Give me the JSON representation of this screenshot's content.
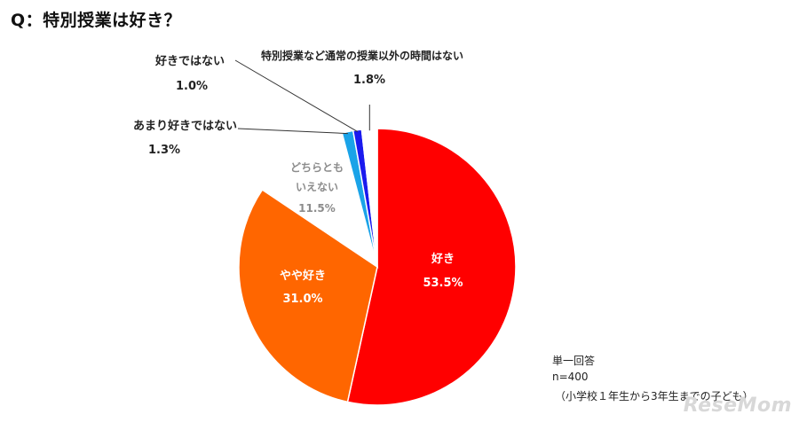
{
  "title": "Q：特別授業は好き？",
  "chart_data": {
    "type": "pie",
    "title": "Q：特別授業は好き？",
    "start": "12 o'clock, clockwise",
    "slices": [
      {
        "label": "好き",
        "value": 53.5,
        "value_label": "53.5%",
        "color": "#ff0000",
        "label_color": "#ffffff"
      },
      {
        "label": "やや好き",
        "value": 31.0,
        "value_label": "31.0%",
        "color": "#ff6600",
        "label_color": "#ffffff"
      },
      {
        "label_lines": [
          "どちらとも",
          "いえない"
        ],
        "value": 11.5,
        "value_label": "11.5%",
        "color": "#ffffff",
        "label_color": "#8c8c8c"
      },
      {
        "label": "あまり好きではない",
        "value": 1.3,
        "value_label": "1.3%",
        "color": "#1aa3e8",
        "label_color": "#222222"
      },
      {
        "label": "好きではない",
        "value": 1.0,
        "value_label": "1.0%",
        "color": "#1a1aee",
        "label_color": "#222222"
      },
      {
        "label": "特別授業など通常の授業以外の時間はない",
        "value": 1.8,
        "value_label": "1.8%",
        "color": "#ffffff",
        "label_color": "#222222"
      }
    ]
  },
  "notes": {
    "answer_type": "単一回答",
    "n": "n=400",
    "population": "（小学校１年生から3年生までの子ども）"
  },
  "watermark": "ReseMom"
}
